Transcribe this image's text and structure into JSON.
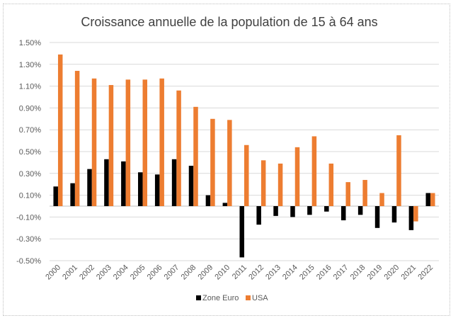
{
  "chart_data": {
    "type": "bar",
    "title": "Croissance annuelle de la population de 15 à 64 ans",
    "xlabel": "",
    "ylabel": "",
    "ylim": [
      -0.5,
      1.5
    ],
    "yticks": [
      "1.50%",
      "1.30%",
      "1.10%",
      "0.90%",
      "0.70%",
      "0.50%",
      "0.30%",
      "0.10%",
      "-0.10%",
      "-0.30%",
      "-0.50%"
    ],
    "ytick_values": [
      1.5,
      1.3,
      1.1,
      0.9,
      0.7,
      0.5,
      0.3,
      0.1,
      -0.1,
      -0.3,
      -0.5
    ],
    "grid": true,
    "legend_position": "bottom",
    "categories": [
      "2000",
      "2001",
      "2002",
      "2003",
      "2004",
      "2005",
      "2006",
      "2007",
      "2008",
      "2009",
      "2010",
      "2011",
      "2012",
      "2013",
      "2014",
      "2015",
      "2016",
      "2017",
      "2018",
      "2019",
      "2020",
      "2021",
      "2022"
    ],
    "series": [
      {
        "name": "Zone Euro",
        "color": "#000000",
        "values": [
          0.18,
          0.21,
          0.34,
          0.43,
          0.41,
          0.31,
          0.29,
          0.43,
          0.37,
          0.1,
          0.03,
          -0.47,
          -0.17,
          -0.09,
          -0.1,
          -0.08,
          -0.05,
          -0.13,
          -0.08,
          -0.2,
          -0.15,
          -0.22,
          0.12
        ]
      },
      {
        "name": "USA",
        "color": "#ED7D31",
        "values": [
          1.39,
          1.24,
          1.17,
          1.11,
          1.16,
          1.16,
          1.17,
          1.06,
          0.91,
          0.8,
          0.79,
          0.56,
          0.42,
          0.39,
          0.54,
          0.64,
          0.39,
          0.22,
          0.24,
          0.12,
          0.65,
          -0.14,
          0.12
        ]
      }
    ]
  }
}
